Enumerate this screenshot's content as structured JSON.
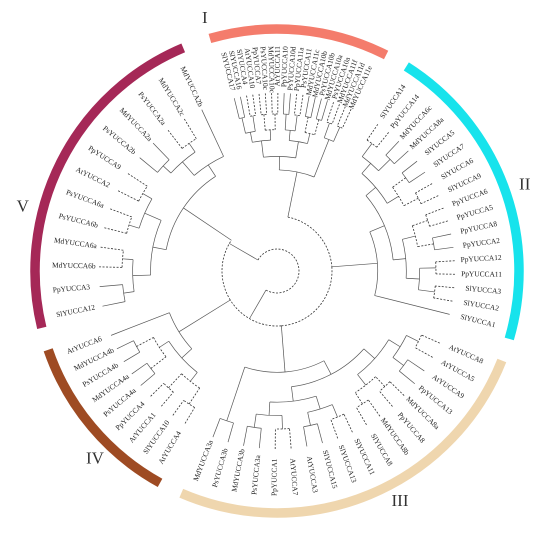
{
  "groups": [
    {
      "numeral": "I",
      "color": "#f47c6c",
      "start": -106.1,
      "end": -63.2,
      "label_angle": -106,
      "leaves": [
        "SlYUCCA17",
        "SlYUCCA16",
        "SlYUCCA4",
        "AtYUCCA10",
        "PpYUCCA7",
        "PsYUCCA10c",
        "MdYUCCA10c",
        "AtYUCCA11",
        "PpYUCCA10",
        "PsYUCCA10d",
        "PpYUCCA11a",
        "PsYUCCA11",
        "MdYUCCA11c",
        "MdYUCCA10b",
        "PsYUCCA10b",
        "MdYUCCA10a",
        "PsYUCCA10a",
        "MdYUCCA11f",
        "MdYUCCA11d",
        "MdYUCCA11e"
      ]
    },
    {
      "numeral": "II",
      "color": "#17e3ec",
      "start": -57.7,
      "end": 16.3,
      "label_angle": -19,
      "leaves": [
        "SlYUCCA14",
        "PpYUCCA14",
        "MdYUCCA6c",
        "MdYUCCA8a",
        "SlYUCCA5",
        "SlYUCCA7",
        "SlYUCCA6",
        "SlYUCCA9",
        "PpYUCCA6",
        "PpYUCCA5",
        "PpYUCCA8",
        "PpYUCCA2",
        "PpYUCCA12",
        "PpYUCCA11",
        "SlYUCCA3",
        "SlYUCCA2",
        "SlYUCCA1"
      ]
    },
    {
      "numeral": "III",
      "color": "#efd6ae",
      "start": 21.7,
      "end": 113.3,
      "label_angle": 62,
      "leaves": [
        "AtYUCCA8",
        "AtYUCCA5",
        "AtYUCCA9",
        "PpYUCCA13",
        "MdYUCCA8a",
        "PpYUCCA8",
        "MdYUCCA8b",
        "SlYUCCA8",
        "SlYUCCA11",
        "SlYUCCA13",
        "SlYUCCA15",
        "AtYUCCA3",
        "AtYUCCA7",
        "PpYUCCA1",
        "PsYUCCA3a",
        "MdYUCCA3b",
        "PsYUCCA3b",
        "MdYUCCA3a"
      ]
    },
    {
      "numeral": "IV",
      "color": "#9e4b23",
      "start": 118.9,
      "end": 161.0,
      "label_angle": 134,
      "leaves": [
        "AtYUCCA4",
        "SlYUCCA10",
        "AtYUCCA1",
        "PpYUCCA4",
        "PsYUCCA4a",
        "MdYUCCA4a",
        "PsYUCCA4b",
        "MdYUCCA4b",
        "AtYUCCA6"
      ]
    },
    {
      "numeral": "V",
      "color": "#a52857",
      "start": 166.4,
      "end": 247.2,
      "label_angle": 194,
      "leaves": [
        "SlYUCCA12",
        "PpYUCCA3",
        "MdYUCCA6b",
        "MdYUCCA6a",
        "PsYUCCA6b",
        "PsYUCCA6a",
        "AtYUCCA2",
        "PpYUCCA9",
        "PsYUCCA2b",
        "MdYUCCA2a",
        "PsYUCCA2a",
        "MdYUCCA2c",
        "MdYUCCA2b"
      ]
    }
  ],
  "colors": {
    "branch": "#555555",
    "label": "#222222",
    "numeral": "#333333"
  }
}
